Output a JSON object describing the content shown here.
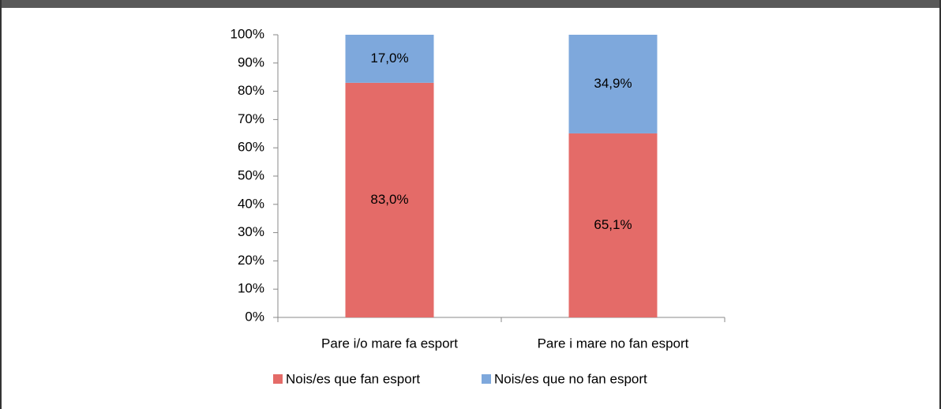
{
  "chart_data": {
    "type": "stacked_bar",
    "categories": [
      "Pare i/o mare fa esport",
      "Pare i mare no fan esport"
    ],
    "series": [
      {
        "name": "Nois/es que fan esport",
        "color": "#e46b68",
        "values": [
          83.0,
          65.1
        ],
        "value_labels": [
          "83,0%",
          "65,1%"
        ]
      },
      {
        "name": "Nois/es que no fan esport",
        "color": "#7ea8dc",
        "values": [
          17.0,
          34.9
        ],
        "value_labels": [
          "17,0%",
          "34,9%"
        ]
      }
    ],
    "ylim": [
      0,
      100
    ],
    "yticks": [
      {
        "value": 0,
        "label": "0%"
      },
      {
        "value": 10,
        "label": "10%"
      },
      {
        "value": 20,
        "label": "20%"
      },
      {
        "value": 30,
        "label": "30%"
      },
      {
        "value": 40,
        "label": "40%"
      },
      {
        "value": 50,
        "label": "50%"
      },
      {
        "value": 60,
        "label": "60%"
      },
      {
        "value": 70,
        "label": "70%"
      },
      {
        "value": 80,
        "label": "80%"
      },
      {
        "value": 90,
        "label": "90%"
      },
      {
        "value": 100,
        "label": "100%"
      }
    ],
    "grid": false,
    "legend": "bottom"
  }
}
